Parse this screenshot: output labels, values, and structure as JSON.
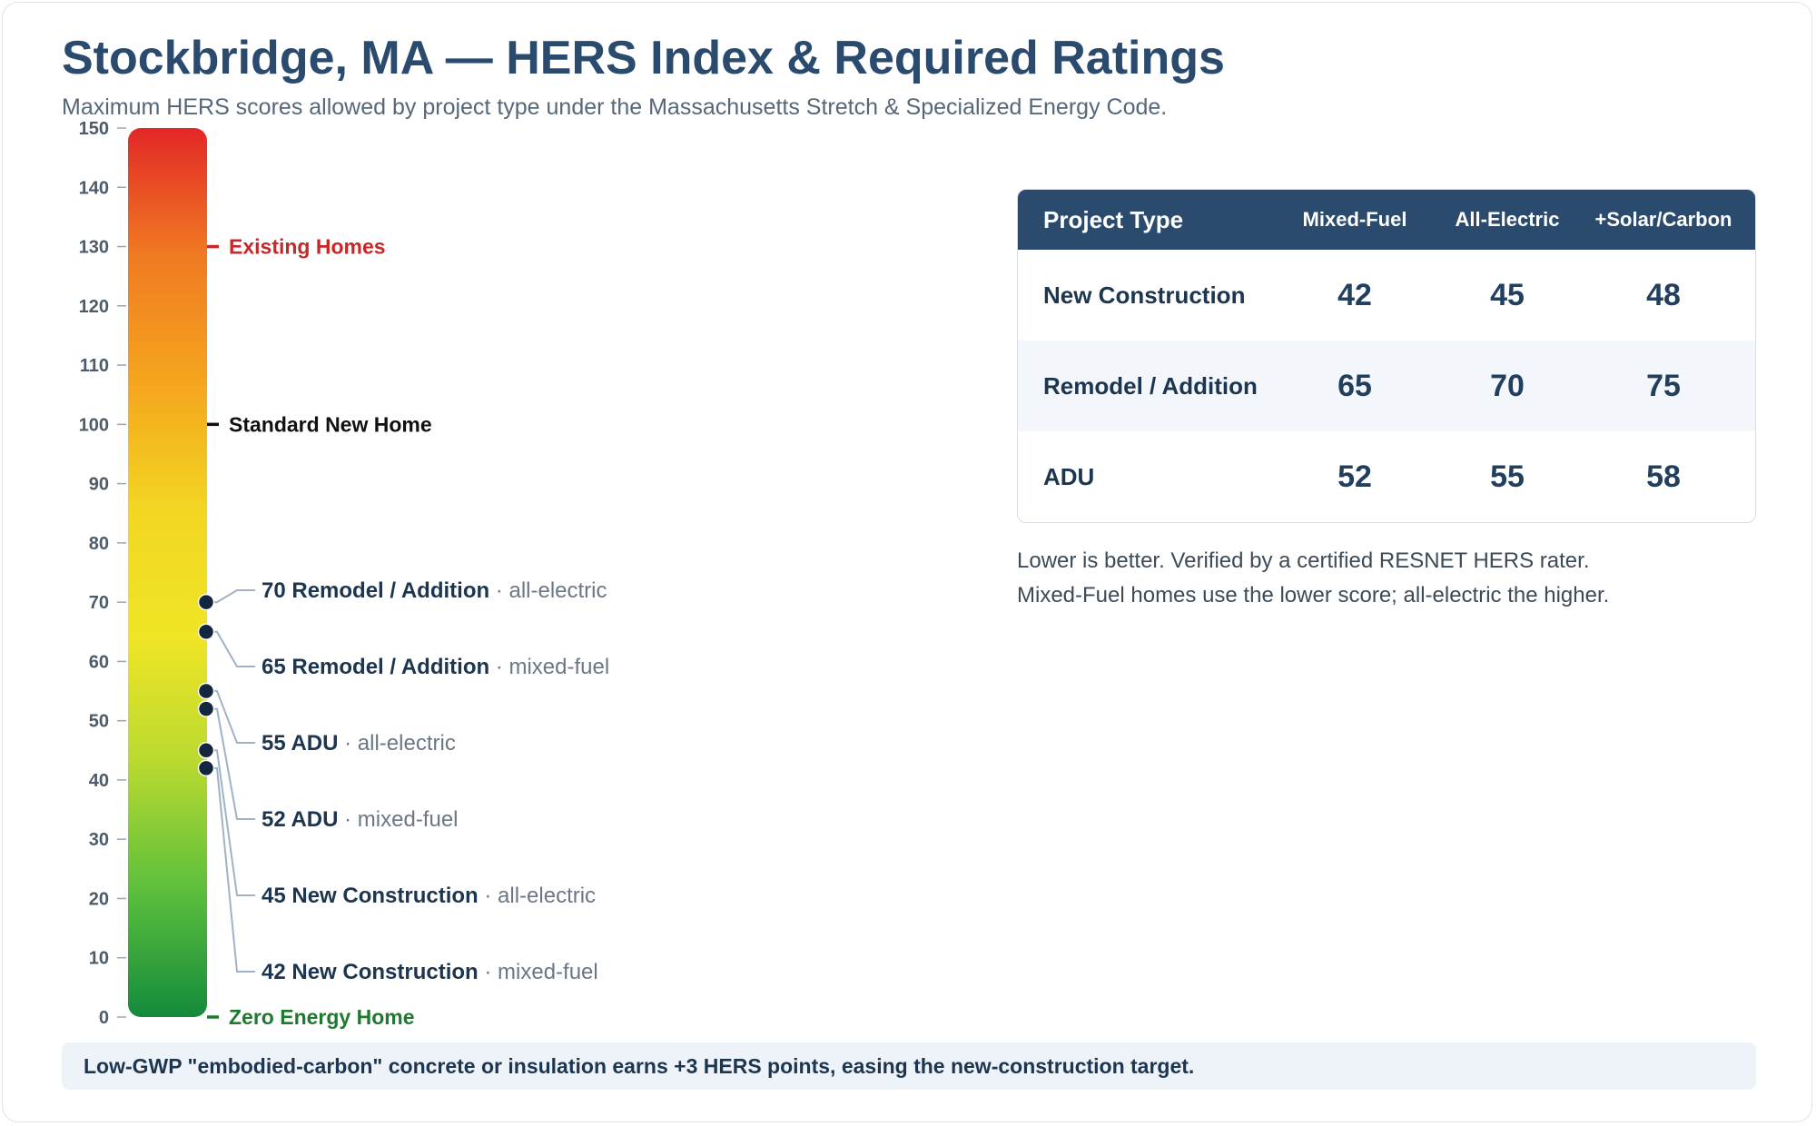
{
  "title": "Stockbridge, MA — HERS Index & Required Ratings",
  "subtitle": "Maximum HERS scores allowed by project type under the Massachusetts Stretch & Specialized Energy Code.",
  "chart_data": {
    "type": "scale",
    "ylim": [
      0,
      150
    ],
    "ticks": [
      0,
      10,
      20,
      30,
      40,
      50,
      60,
      70,
      80,
      90,
      100,
      110,
      120,
      130,
      140,
      150
    ],
    "reference_marks": [
      {
        "value": 130,
        "label": "Existing Homes",
        "color": "#c62828"
      },
      {
        "value": 100,
        "label": "Standard New Home",
        "color": "#111111"
      },
      {
        "value": 0,
        "label": "Zero Energy Home",
        "color": "#1e7a2e"
      }
    ],
    "points": [
      {
        "value": 70,
        "project": "Remodel / Addition",
        "fuel": "all-electric"
      },
      {
        "value": 65,
        "project": "Remodel / Addition",
        "fuel": "mixed-fuel"
      },
      {
        "value": 55,
        "project": "ADU",
        "fuel": "all-electric"
      },
      {
        "value": 52,
        "project": "ADU",
        "fuel": "mixed-fuel"
      },
      {
        "value": 45,
        "project": "New Construction",
        "fuel": "all-electric"
      },
      {
        "value": 42,
        "project": "New Construction",
        "fuel": "mixed-fuel"
      }
    ],
    "gradient_colors": [
      "#e32727",
      "#f07a22",
      "#f5a51d",
      "#f2d622",
      "#efe524",
      "#b9d930",
      "#5cbf3c",
      "#148a3c"
    ]
  },
  "table": {
    "headers": [
      "Project Type",
      "Mixed-Fuel",
      "All-Electric",
      "+Solar/Carbon"
    ],
    "rows": [
      {
        "type": "New Construction",
        "mixed": "42",
        "electric": "45",
        "solar": "48"
      },
      {
        "type": "Remodel / Addition",
        "mixed": "65",
        "electric": "70",
        "solar": "75"
      },
      {
        "type": "ADU",
        "mixed": "52",
        "electric": "55",
        "solar": "58"
      }
    ]
  },
  "notes": [
    "Lower is better. Verified by a certified RESNET HERS rater.",
    "Mixed-Fuel homes use the lower score; all-electric the higher."
  ],
  "footer": "Low-GWP \"embodied-carbon\" concrete or insulation earns +3 HERS points, easing the new-construction target."
}
